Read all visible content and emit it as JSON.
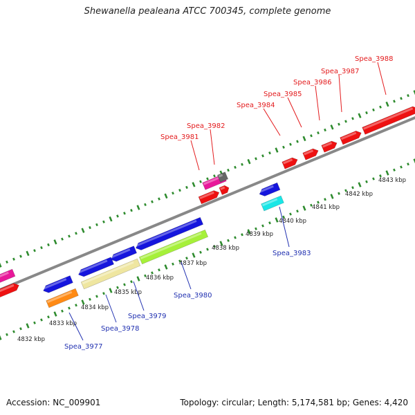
{
  "title": "Shewanella pealeana ATCC 700345, complete genome",
  "footer": {
    "accession": "Accession: NC_009901",
    "stats": "Topology: circular; Length: 5,174,581 bp; Genes: 4,420"
  },
  "colors": {
    "backbone": "#8a8a8a",
    "ticks": "#2e8b2e",
    "red_gene": "#ee1111",
    "blue_gene": "#1515dd",
    "magenta_gene": "#e8189a",
    "grey_gene": "#666666",
    "cyan_gene": "#19e6e6",
    "lime_gene": "#a6f03a",
    "khaki_gene": "#efe6a0",
    "orange_gene": "#ff8a14",
    "red_label": "#e31a1c",
    "blue_label": "#1f2fb0"
  },
  "kbp_labels": [
    "4832 kbp",
    "4833 kbp",
    "4834 kbp",
    "4835 kbp",
    "4836 kbp",
    "4837 kbp",
    "4838 kbp",
    "4839 kbp",
    "4840 kbp",
    "4841 kbp",
    "4842 kbp",
    "4843 kbp"
  ],
  "genes_top": [
    {
      "label": "Spea_3981"
    },
    {
      "label": "Spea_3982"
    },
    {
      "label": "Spea_3984"
    },
    {
      "label": "Spea_3985"
    },
    {
      "label": "Spea_3986"
    },
    {
      "label": "Spea_3987"
    },
    {
      "label": "Spea_3988"
    }
  ],
  "genes_bottom": [
    {
      "label": "Spea_3977"
    },
    {
      "label": "Spea_3978"
    },
    {
      "label": "Spea_3979"
    },
    {
      "label": "Spea_3980"
    },
    {
      "label": "Spea_3983"
    }
  ]
}
